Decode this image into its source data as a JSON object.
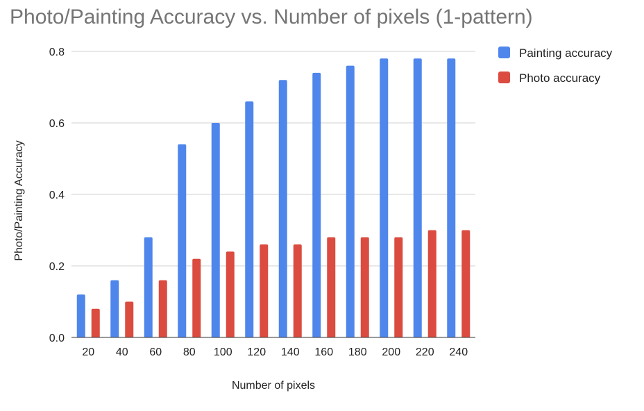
{
  "chart_data": {
    "type": "bar",
    "title": "Photo/Painting Accuracy vs. Number of pixels (1-pattern)",
    "xlabel": "Number of pixels",
    "ylabel": "Photo/Painting Accuracy",
    "categories": [
      "20",
      "40",
      "60",
      "80",
      "100",
      "120",
      "140",
      "160",
      "180",
      "200",
      "220",
      "240"
    ],
    "ylim": [
      0,
      0.8
    ],
    "yticks": [
      "0.0",
      "0.2",
      "0.4",
      "0.6",
      "0.8"
    ],
    "grid": true,
    "legend_position": "top-right",
    "series": [
      {
        "name": "Painting accuracy",
        "color": "#4f86ec",
        "values": [
          0.12,
          0.16,
          0.28,
          0.54,
          0.6,
          0.66,
          0.72,
          0.74,
          0.76,
          0.78,
          0.78,
          0.78
        ]
      },
      {
        "name": "Photo accuracy",
        "color": "#db4b3f",
        "values": [
          0.08,
          0.1,
          0.16,
          0.22,
          0.24,
          0.26,
          0.26,
          0.28,
          0.28,
          0.28,
          0.3,
          0.3
        ]
      }
    ]
  }
}
